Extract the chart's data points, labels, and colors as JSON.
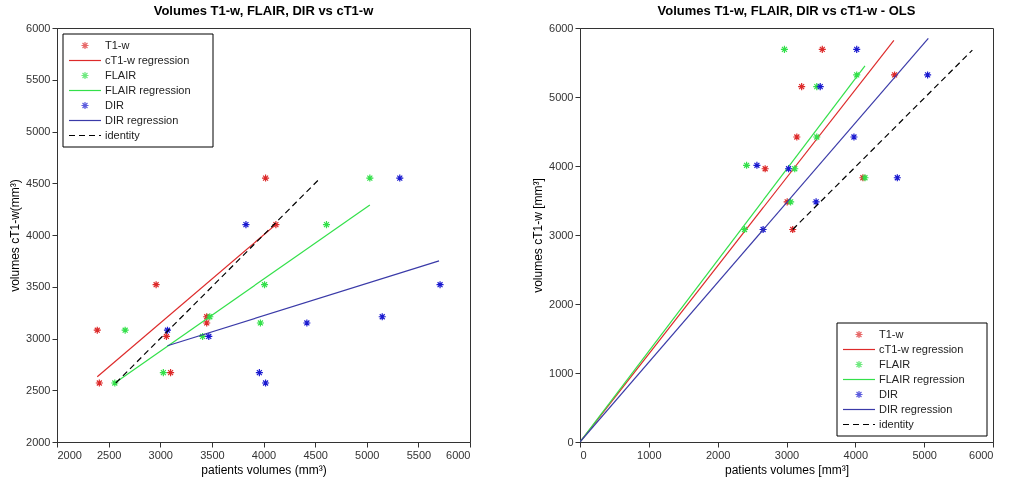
{
  "chart_data": [
    {
      "type": "scatter",
      "title": "Volumes T1-w, FLAIR, DIR vs cT1-w",
      "xlabel": "patients volumes (mm³)",
      "ylabel": "volumes cT1-w(mm³)",
      "xlim": [
        2000,
        6000
      ],
      "ylim": [
        2000,
        6000
      ],
      "xticks": [
        2000,
        2500,
        3000,
        3500,
        4000,
        4500,
        5000,
        5500,
        6000
      ],
      "yticks": [
        2000,
        2500,
        3000,
        3500,
        4000,
        4500,
        5000,
        5500,
        6000
      ],
      "grid": false,
      "legend": "top left",
      "marker": "cross",
      "series": [
        {
          "name": "T1-w",
          "color": "#dd2a2a",
          "x": [
            4020,
            4120,
            2960,
            2390,
            2410,
            3060,
            3450,
            3450,
            3100
          ],
          "values": [
            4550,
            4100,
            3520,
            3080,
            2570,
            3020,
            3210,
            3150,
            2670
          ]
        },
        {
          "name": "cT1-w regression",
          "type": "line",
          "marker": "none",
          "line_style": "solid",
          "color": "#dd2a2a",
          "x": [
            2390,
            4130
          ],
          "values": [
            2630,
            4110
          ]
        },
        {
          "name": "FLAIR",
          "color": "#33e04a",
          "x": [
            5030,
            4610,
            4010,
            2660,
            2560,
            3410,
            3480,
            3970,
            3030
          ],
          "values": [
            4550,
            4100,
            3520,
            3080,
            2570,
            3020,
            3210,
            3150,
            2670
          ]
        },
        {
          "name": "FLAIR regression",
          "type": "line",
          "marker": "none",
          "line_style": "solid",
          "color": "#33e04a",
          "x": [
            2560,
            5030
          ],
          "values": [
            2570,
            4290
          ]
        },
        {
          "name": "DIR",
          "color": "#1a1ad0",
          "x": [
            5320,
            3830,
            5710,
            3070,
            4020,
            3470,
            5150,
            4420,
            3960
          ],
          "values": [
            4550,
            4100,
            3520,
            3080,
            2570,
            3020,
            3210,
            3150,
            2670
          ]
        },
        {
          "name": "DIR regression",
          "type": "line",
          "marker": "none",
          "line_style": "solid",
          "color": "#3a3aa8",
          "x": [
            3070,
            5700
          ],
          "values": [
            2930,
            3750
          ]
        },
        {
          "name": "identity",
          "type": "line",
          "marker": "none",
          "color": "#000000",
          "line_style": "dashed",
          "x": [
            2570,
            4550
          ],
          "values": [
            2570,
            4550
          ]
        }
      ]
    },
    {
      "type": "scatter",
      "title": "Volumes T1-w, FLAIR, DIR vs cT1-w - OLS",
      "xlabel": "patients volumes [mm³]",
      "ylabel": "volumes cT1-w [mm³]",
      "xlim": [
        0,
        6000
      ],
      "ylim": [
        0,
        6000
      ],
      "xticks": [
        0,
        1000,
        2000,
        3000,
        4000,
        5000,
        6000
      ],
      "yticks": [
        0,
        1000,
        2000,
        3000,
        4000,
        5000,
        6000
      ],
      "grid": false,
      "legend": "bottom right",
      "marker": "cross",
      "series": [
        {
          "name": "T1-w",
          "color": "#dd2a2a",
          "x": [
            3520,
            4570,
            3220,
            3150,
            2690,
            4110,
            3010,
            3090
          ],
          "values": [
            5690,
            5320,
            5150,
            4420,
            3960,
            3830,
            3480,
            3080
          ]
        },
        {
          "name": "cT1-w regression",
          "type": "line",
          "marker": "none",
          "line_style": "solid",
          "color": "#dd2a2a",
          "x": [
            0,
            4560
          ],
          "values": [
            0,
            5820
          ]
        },
        {
          "name": "FLAIR",
          "color": "#33e04a",
          "x": [
            2970,
            4020,
            3440,
            3440,
            2420,
            3120,
            4140,
            3060,
            2390
          ],
          "values": [
            5690,
            5320,
            5150,
            4420,
            4010,
            3960,
            3830,
            3480,
            3080
          ]
        },
        {
          "name": "FLAIR regression",
          "type": "line",
          "marker": "none",
          "line_style": "solid",
          "color": "#33e04a",
          "x": [
            0,
            4140
          ],
          "values": [
            0,
            5450
          ]
        },
        {
          "name": "DIR",
          "color": "#1a1ad0",
          "x": [
            4020,
            5050,
            3490,
            3980,
            2570,
            3030,
            4610,
            3430,
            2660
          ],
          "values": [
            5690,
            5320,
            5150,
            4420,
            4010,
            3960,
            3830,
            3480,
            3080
          ]
        },
        {
          "name": "DIR regression",
          "type": "line",
          "marker": "none",
          "line_style": "solid",
          "color": "#3a3aa8",
          "x": [
            0,
            5060
          ],
          "values": [
            0,
            5850
          ]
        },
        {
          "name": "identity",
          "type": "line",
          "marker": "none",
          "color": "#000000",
          "line_style": "dashed",
          "x": [
            3090,
            5700
          ],
          "values": [
            3080,
            5680
          ]
        }
      ]
    }
  ]
}
